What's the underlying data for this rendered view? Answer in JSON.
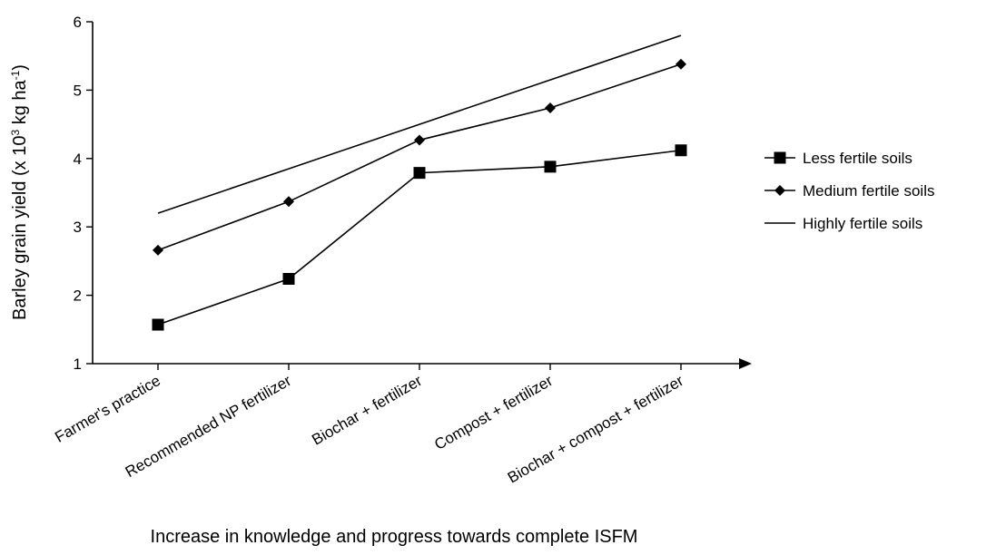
{
  "chart_data": {
    "type": "line",
    "xlabel": "Increase in knowledge and progress towards complete ISFM",
    "ylabel_prefix": "Barley grain yield (x 10",
    "ylabel_sup1": "3",
    "ylabel_mid": " kg ha",
    "ylabel_sup2": "-1",
    "ylabel_suffix": ")",
    "ylim": [
      1,
      6
    ],
    "yticks": [
      "1",
      "2",
      "3",
      "4",
      "5",
      "6"
    ],
    "categories": [
      "Farmer's  practice",
      "Recommended NP fertilizer",
      "Biochar + fertilizer",
      "Compost + fertilizer",
      "Biochar + compost + fertilizer"
    ],
    "series": [
      {
        "name": "Less fertile soils",
        "marker": "square",
        "values": [
          1.57,
          2.24,
          3.79,
          3.88,
          4.12
        ]
      },
      {
        "name": "Medium fertile soils",
        "marker": "diamond",
        "values": [
          2.66,
          3.37,
          4.27,
          4.74,
          5.38
        ]
      },
      {
        "name": "Highly fertile soils",
        "marker": "none",
        "values": [
          3.2,
          3.85,
          4.5,
          5.15,
          5.8
        ]
      }
    ],
    "legend_position": "right",
    "grid": false,
    "line_color": "#000000"
  }
}
